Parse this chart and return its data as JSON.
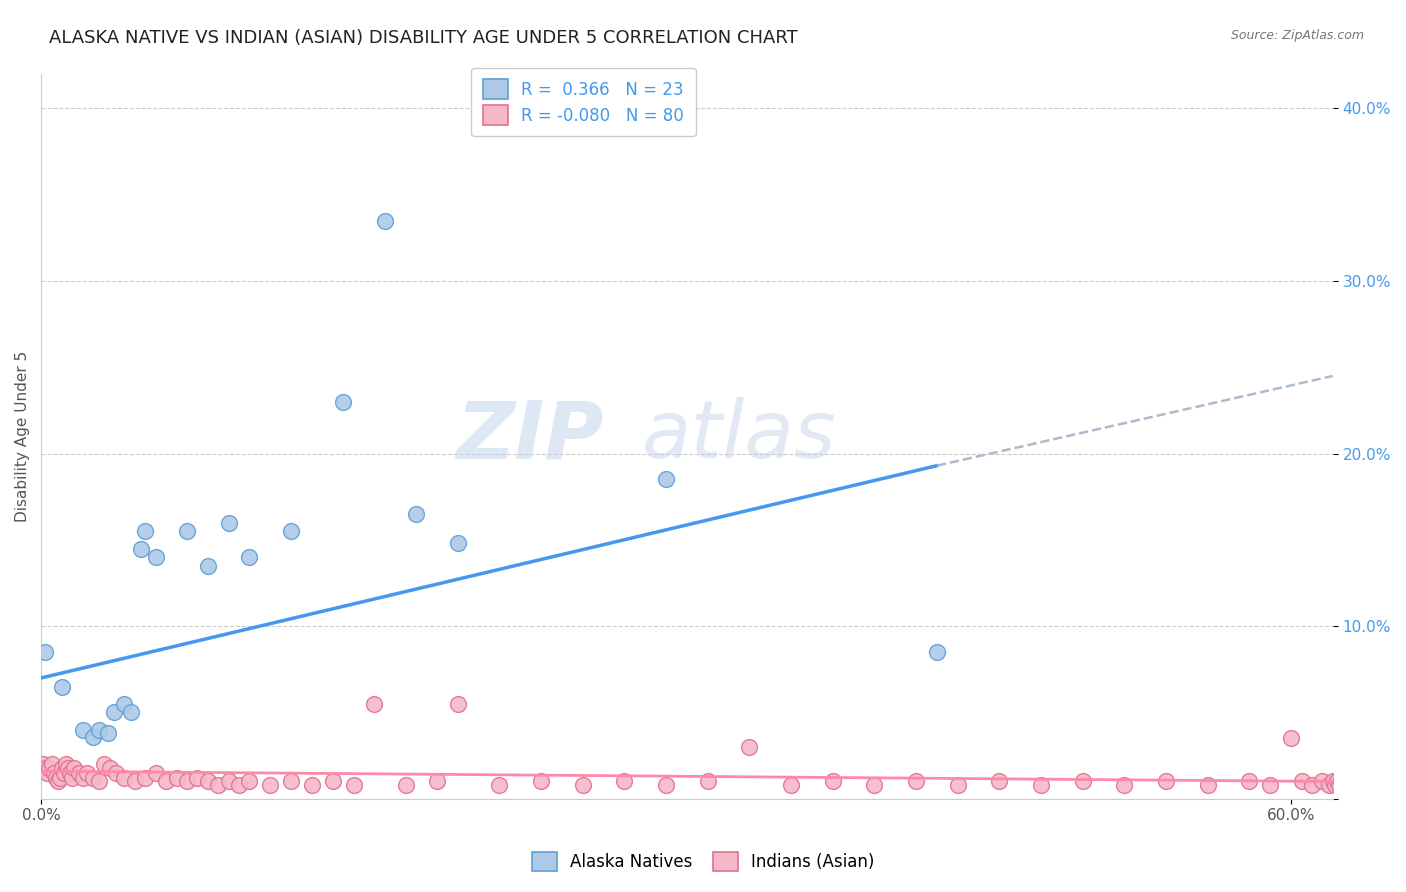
{
  "title": "ALASKA NATIVE VS INDIAN (ASIAN) DISABILITY AGE UNDER 5 CORRELATION CHART",
  "source": "Source: ZipAtlas.com",
  "ylabel": "Disability Age Under 5",
  "legend_alaska": "Alaska Natives",
  "legend_indian": "Indians (Asian)",
  "r_alaska": "0.366",
  "n_alaska": "23",
  "r_indian": "-0.080",
  "n_indian": "80",
  "watermark_zip": "ZIP",
  "watermark_atlas": "atlas",
  "alaska_color": "#adc9e8",
  "alaska_edge": "#5d9fd4",
  "indian_color": "#f5b8c9",
  "indian_edge": "#e07090",
  "trend_alaska_color": "#4499ee",
  "trend_indian_color": "#ff88aa",
  "trend_dashed_color": "#aabbcc",
  "yaxis_tick_color": "#4499ee",
  "ylim": [
    0.0,
    0.42
  ],
  "xlim": [
    0.0,
    0.62
  ],
  "yticks": [
    0.0,
    0.1,
    0.2,
    0.3,
    0.4
  ],
  "ytick_labels": [
    "",
    "10.0%",
    "20.0%",
    "30.0%",
    "40.0%"
  ],
  "alaska_x": [
    0.002,
    0.01,
    0.02,
    0.025,
    0.028,
    0.032,
    0.035,
    0.04,
    0.043,
    0.048,
    0.05,
    0.055,
    0.07,
    0.08,
    0.09,
    0.1,
    0.12,
    0.145,
    0.165,
    0.18,
    0.2,
    0.3,
    0.43
  ],
  "alaska_y": [
    0.085,
    0.065,
    0.04,
    0.036,
    0.04,
    0.038,
    0.05,
    0.055,
    0.05,
    0.145,
    0.155,
    0.14,
    0.155,
    0.135,
    0.16,
    0.14,
    0.155,
    0.23,
    0.335,
    0.165,
    0.148,
    0.185,
    0.085
  ],
  "indian_x": [
    0.001,
    0.002,
    0.003,
    0.004,
    0.005,
    0.006,
    0.007,
    0.008,
    0.009,
    0.01,
    0.011,
    0.012,
    0.013,
    0.014,
    0.015,
    0.016,
    0.018,
    0.02,
    0.022,
    0.025,
    0.028,
    0.03,
    0.033,
    0.036,
    0.04,
    0.045,
    0.05,
    0.055,
    0.06,
    0.065,
    0.07,
    0.075,
    0.08,
    0.085,
    0.09,
    0.095,
    0.1,
    0.11,
    0.12,
    0.13,
    0.14,
    0.15,
    0.16,
    0.175,
    0.19,
    0.2,
    0.22,
    0.24,
    0.26,
    0.28,
    0.3,
    0.32,
    0.34,
    0.36,
    0.38,
    0.4,
    0.42,
    0.44,
    0.46,
    0.48,
    0.5,
    0.52,
    0.54,
    0.56,
    0.58,
    0.59,
    0.6,
    0.605,
    0.61,
    0.615,
    0.618,
    0.62,
    0.621,
    0.622,
    0.623,
    0.624,
    0.625,
    0.626,
    0.627,
    0.628
  ],
  "indian_y": [
    0.02,
    0.018,
    0.015,
    0.018,
    0.02,
    0.015,
    0.012,
    0.01,
    0.012,
    0.018,
    0.015,
    0.02,
    0.018,
    0.015,
    0.012,
    0.018,
    0.015,
    0.012,
    0.015,
    0.012,
    0.01,
    0.02,
    0.018,
    0.015,
    0.012,
    0.01,
    0.012,
    0.015,
    0.01,
    0.012,
    0.01,
    0.012,
    0.01,
    0.008,
    0.01,
    0.008,
    0.01,
    0.008,
    0.01,
    0.008,
    0.01,
    0.008,
    0.055,
    0.008,
    0.01,
    0.055,
    0.008,
    0.01,
    0.008,
    0.01,
    0.008,
    0.01,
    0.03,
    0.008,
    0.01,
    0.008,
    0.01,
    0.008,
    0.01,
    0.008,
    0.01,
    0.008,
    0.01,
    0.008,
    0.01,
    0.008,
    0.035,
    0.01,
    0.008,
    0.01,
    0.008,
    0.01,
    0.008,
    0.01,
    0.008,
    0.01,
    0.008,
    0.01,
    0.008,
    0.01
  ],
  "trend_ak_x0": 0.0,
  "trend_ak_y0": 0.07,
  "trend_ak_x1": 0.43,
  "trend_ak_y1": 0.193,
  "trend_ak_dash_x0": 0.43,
  "trend_ak_dash_y0": 0.193,
  "trend_ak_dash_x1": 0.62,
  "trend_ak_dash_y1": 0.245,
  "trend_in_x0": 0.0,
  "trend_in_y0": 0.016,
  "trend_in_x1": 0.62,
  "trend_in_y1": 0.01,
  "bg_color": "#ffffff",
  "grid_color": "#cccccc",
  "title_fontsize": 13,
  "axis_fontsize": 11,
  "legend_fontsize": 12,
  "tick_fontsize": 11
}
